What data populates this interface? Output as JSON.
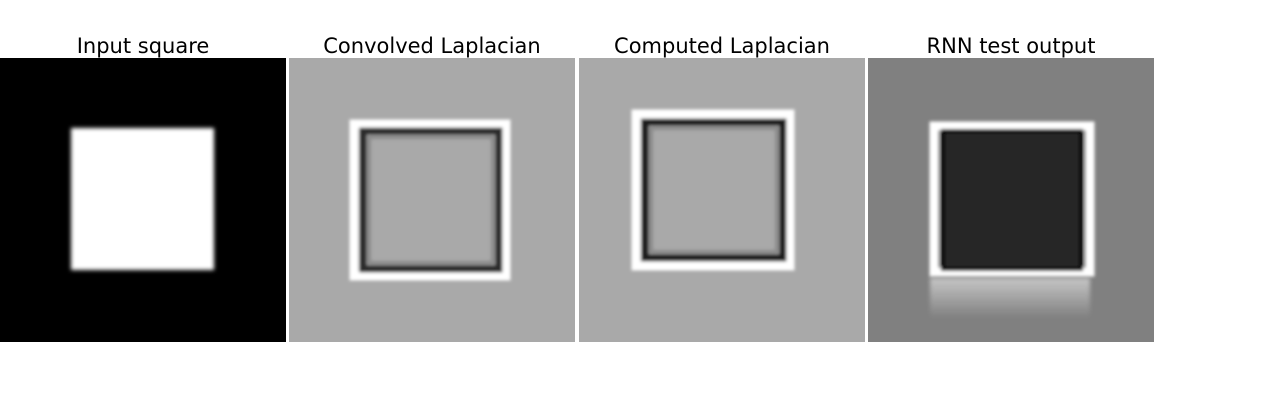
{
  "panels": [
    {
      "id": "input",
      "title": "Input square"
    },
    {
      "id": "convolved",
      "title": "Convolved Laplacian"
    },
    {
      "id": "computed",
      "title": "Computed Laplacian"
    },
    {
      "id": "rnn",
      "title": "RNN test output"
    }
  ]
}
